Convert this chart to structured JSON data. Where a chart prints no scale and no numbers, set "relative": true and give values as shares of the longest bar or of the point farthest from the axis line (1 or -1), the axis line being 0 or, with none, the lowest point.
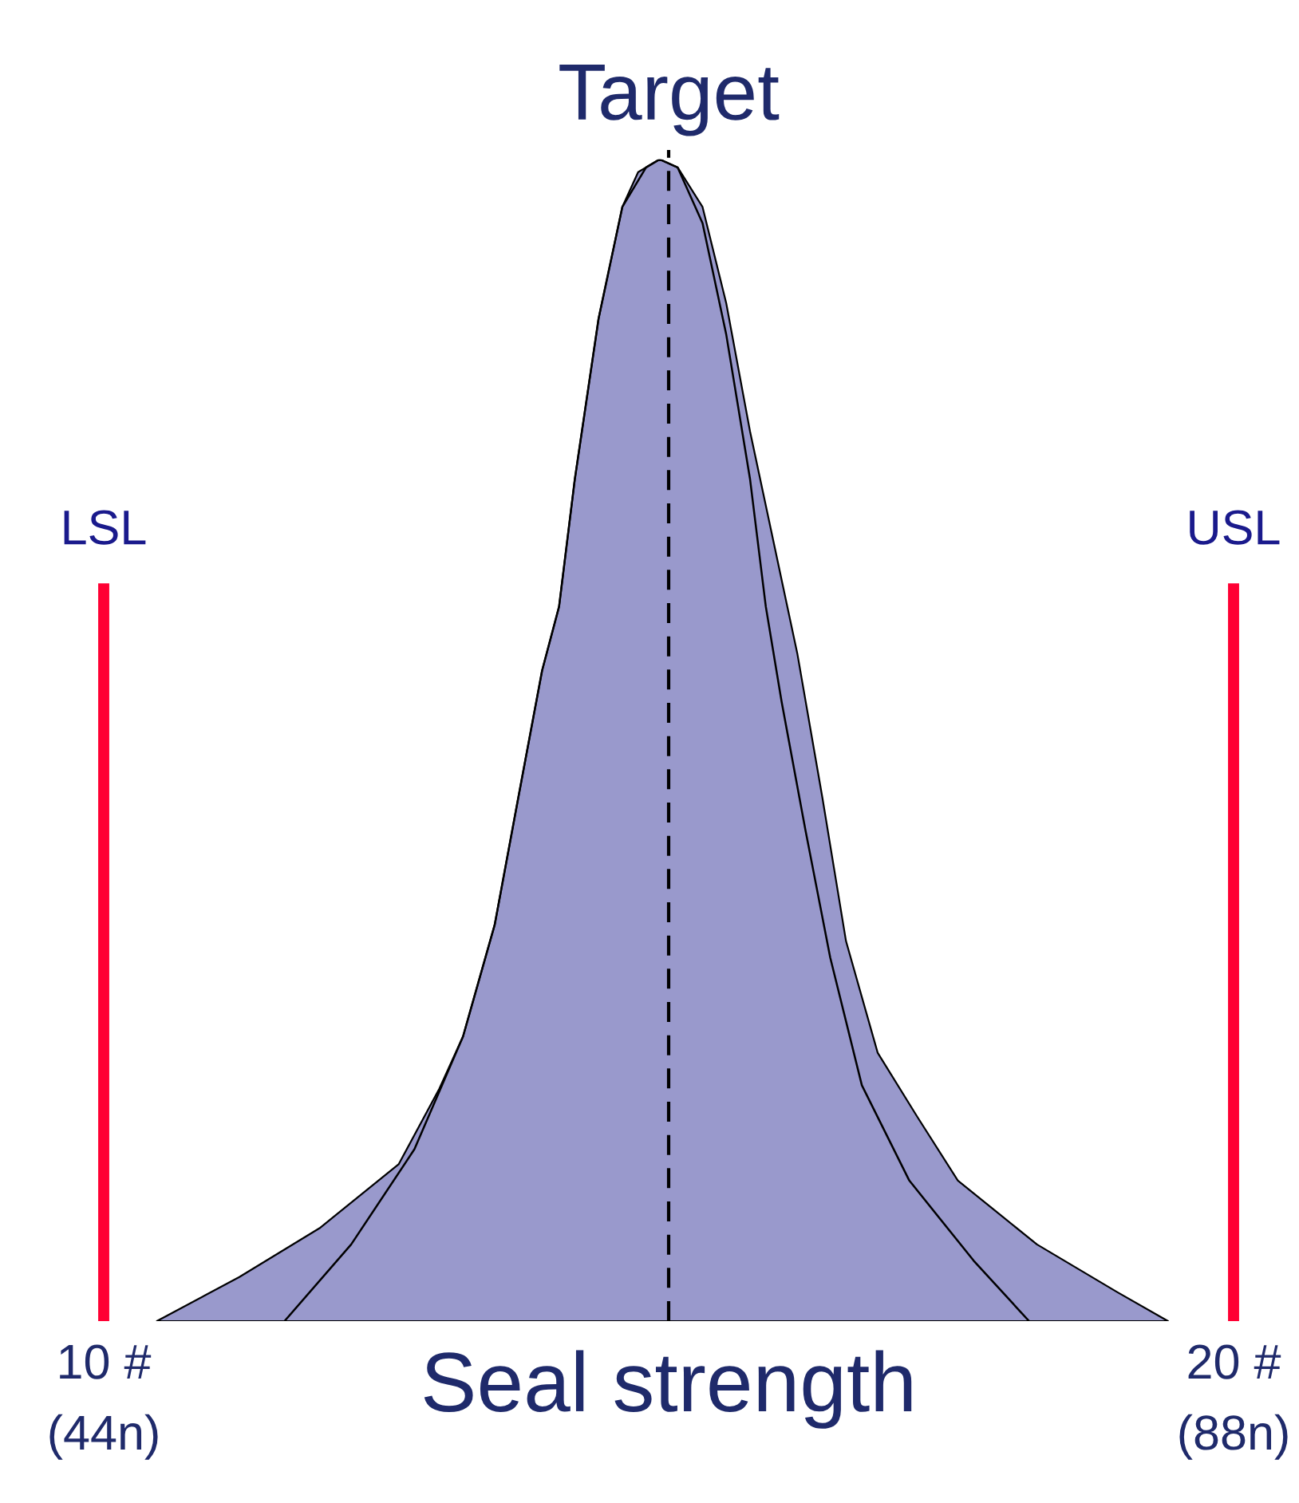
{
  "chart_data": {
    "type": "area",
    "relative": true,
    "xlabel": "Seal strength",
    "xlim": [
      10,
      20
    ],
    "xticks": [
      {
        "value": 10,
        "label": "10 #"
      },
      {
        "value": 20,
        "label": "20 #"
      }
    ],
    "annotations": [
      "(44n)",
      "(88n)"
    ],
    "series": [
      {
        "color": "#9999cc",
        "x": [
          10.47,
          11.2,
          11.91,
          12.61,
          12.97,
          13.18,
          13.46,
          13.67,
          13.88,
          14.03,
          14.17,
          14.38,
          14.59,
          14.73,
          14.92,
          15.08,
          15.3,
          15.51,
          15.72,
          15.93,
          16.14,
          16.36,
          16.57,
          16.85,
          17.2,
          17.56,
          18.26,
          18.97,
          19.42
        ],
        "values": [
          0,
          0.038,
          0.08,
          0.135,
          0.2,
          0.245,
          0.341,
          0.451,
          0.56,
          0.615,
          0.725,
          0.863,
          0.959,
          0.989,
          1.0,
          0.993,
          0.959,
          0.876,
          0.766,
          0.67,
          0.574,
          0.451,
          0.327,
          0.231,
          0.176,
          0.121,
          0.066,
          0.025,
          0
        ]
      },
      {
        "type": "line",
        "color": "#000000",
        "x": [
          11.6,
          12.19,
          12.75,
          13.18,
          13.46,
          13.67,
          13.88,
          14.03,
          14.17,
          14.38,
          14.59,
          14.8,
          14.92,
          15.08,
          15.3,
          15.51,
          15.72,
          15.86,
          16.0,
          16.21,
          16.43,
          16.71,
          17.13,
          17.7,
          18.19
        ],
        "values": [
          0,
          0.066,
          0.148,
          0.245,
          0.341,
          0.451,
          0.56,
          0.615,
          0.725,
          0.863,
          0.959,
          0.993,
          1.0,
          0.993,
          0.945,
          0.849,
          0.725,
          0.615,
          0.533,
          0.423,
          0.313,
          0.203,
          0.121,
          0.052,
          0
        ]
      }
    ],
    "ref_lines": [
      {
        "axis": "x",
        "value": 10,
        "label": "LSL",
        "color": "#ff0033",
        "line_style": "solid"
      },
      {
        "axis": "x",
        "value": 20,
        "label": "USL",
        "color": "#ff0033",
        "line_style": "solid"
      },
      {
        "axis": "x",
        "value": 15,
        "label": "Target",
        "color": "#000000",
        "line_style": "dashed"
      }
    ]
  }
}
